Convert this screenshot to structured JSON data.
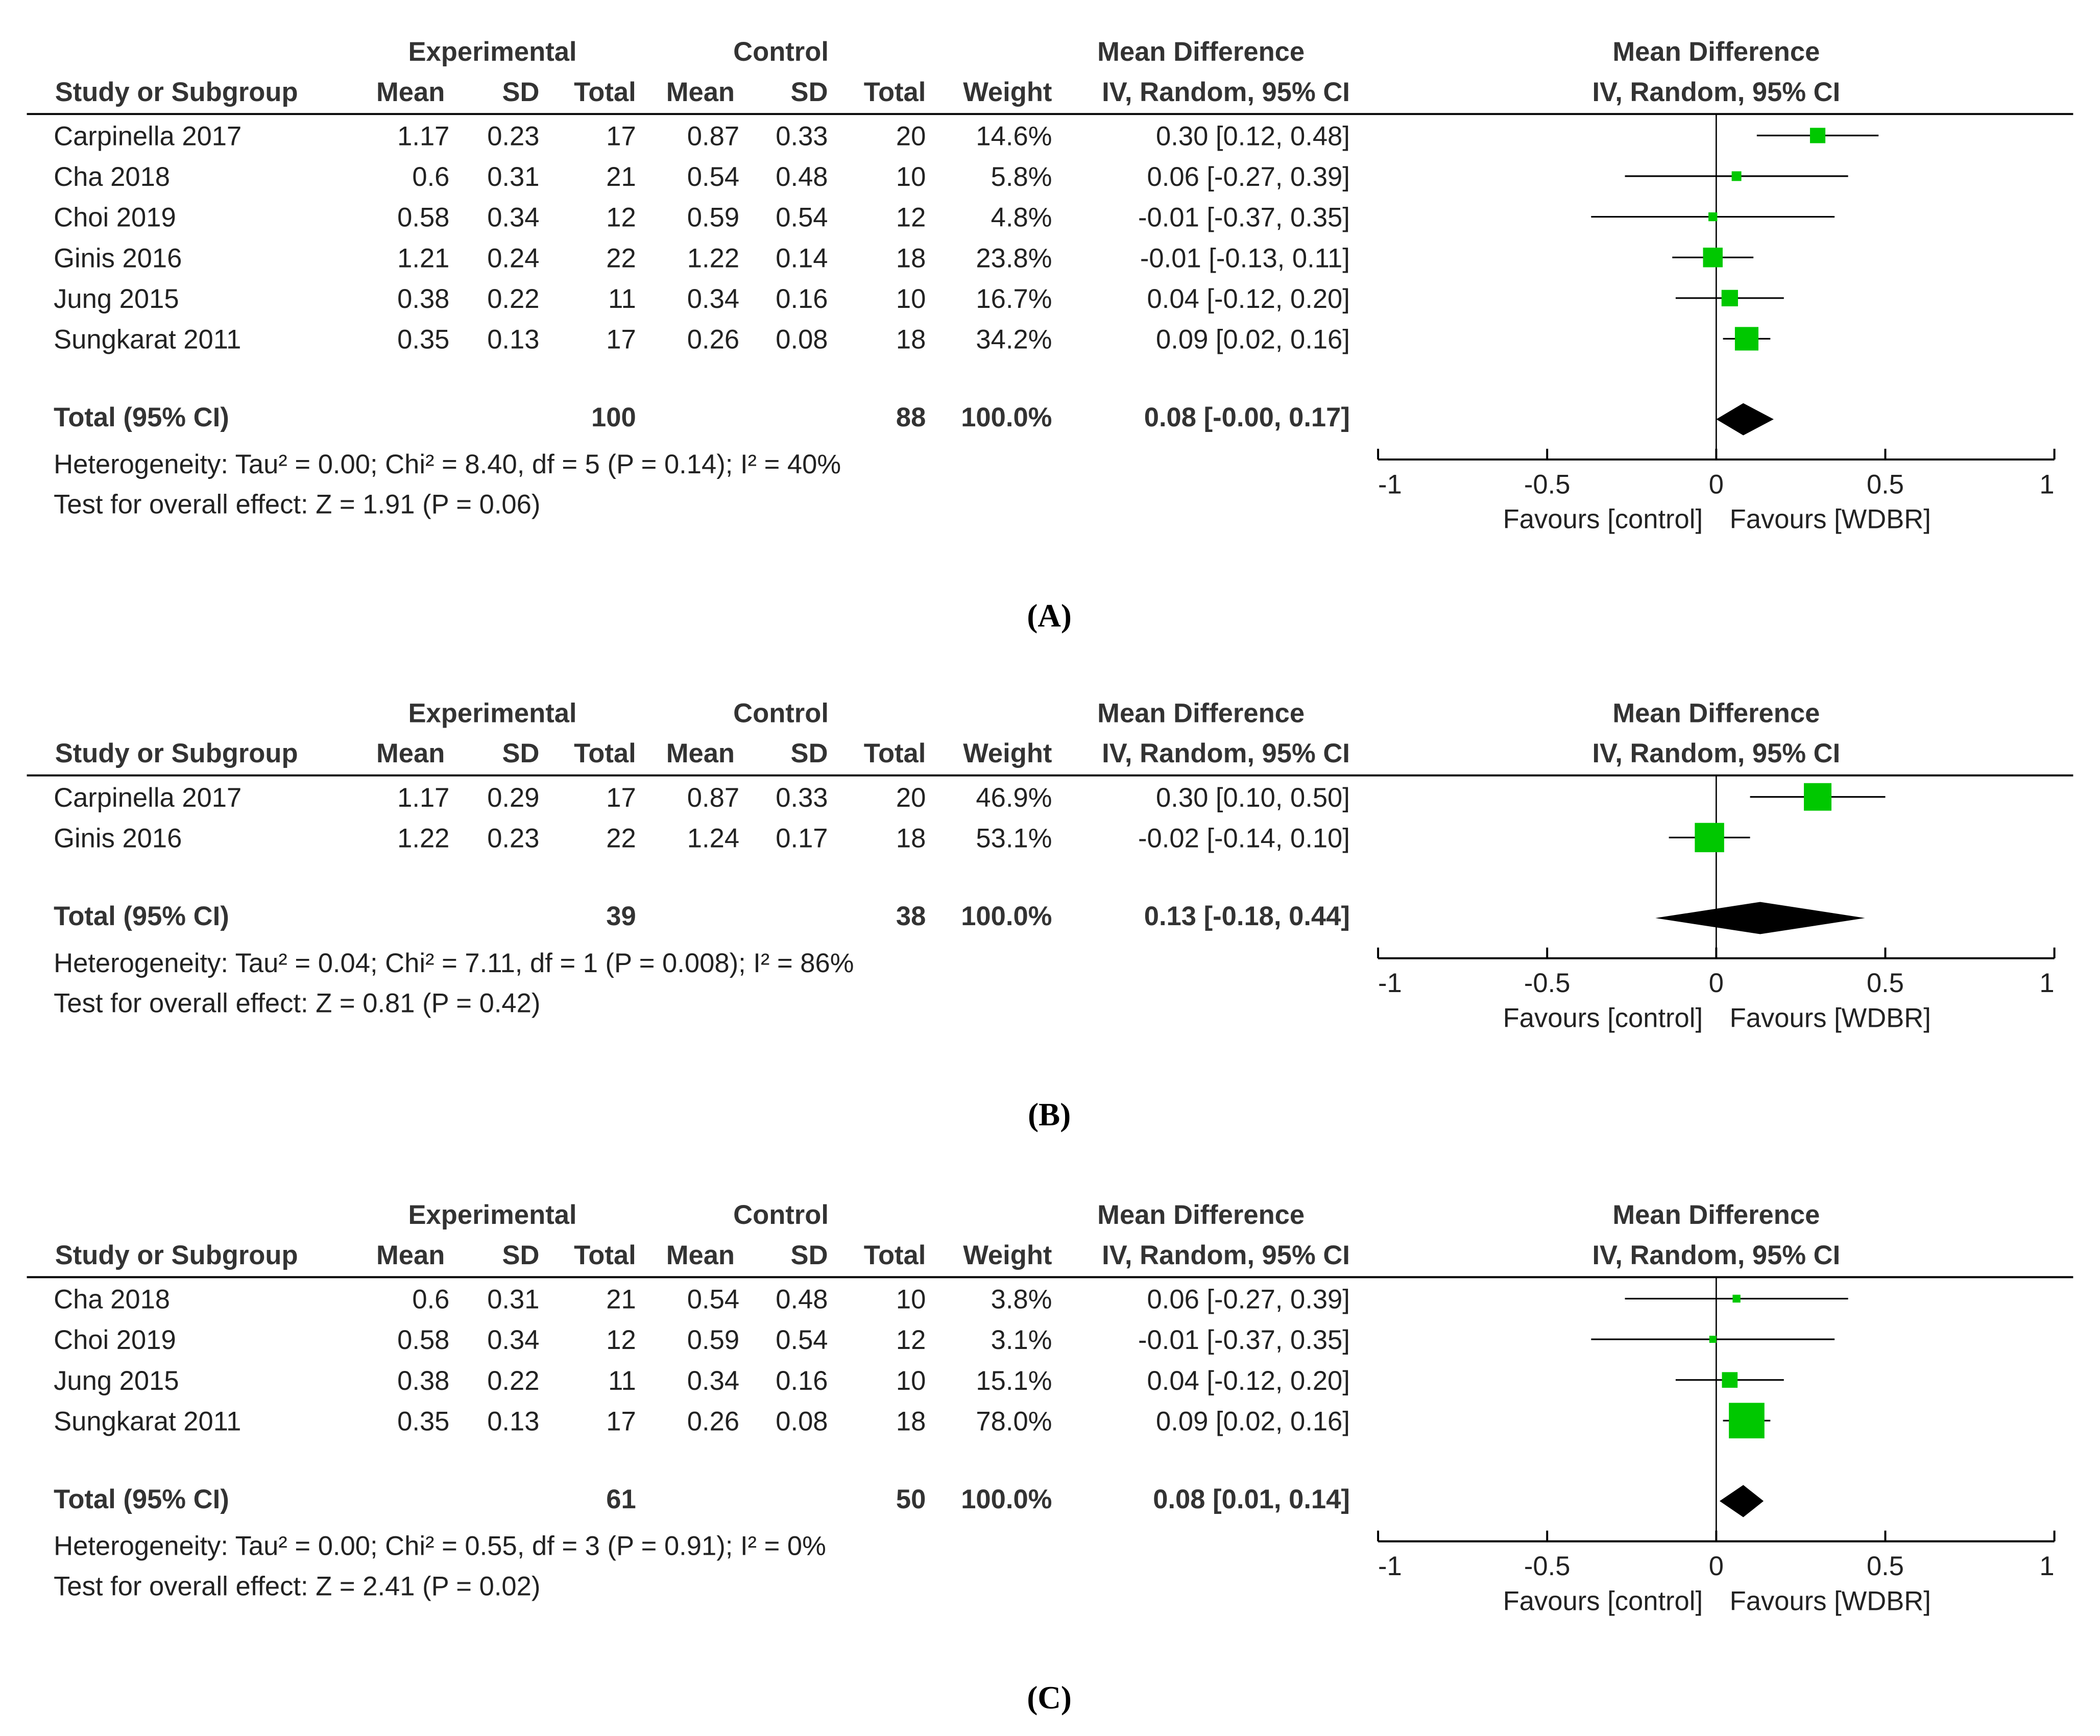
{
  "chart_data": [
    {
      "type": "forest",
      "panel_label": "(A)",
      "header": {
        "group_exp": "Experimental",
        "group_ctl": "Control",
        "group_md": "Mean Difference",
        "study": "Study or Subgroup",
        "exp_cols": [
          "Mean",
          "SD",
          "Total"
        ],
        "ctl_cols": [
          "Mean",
          "SD",
          "Total"
        ],
        "weight": "Weight",
        "md_method": "IV, Random, 95% CI",
        "plot_title": "Mean Difference",
        "plot_method": "IV, Random, 95% CI"
      },
      "studies": [
        {
          "name": "Carpinella 2017",
          "exp_mean": 1.17,
          "exp_sd": 0.23,
          "exp_total": 17,
          "ctl_mean": 0.87,
          "ctl_sd": 0.33,
          "ctl_total": 20,
          "weight": 14.6,
          "weight_label": "14.6%",
          "md": 0.3,
          "ci_low": 0.12,
          "ci_high": 0.48,
          "ci_label": "0.30 [0.12, 0.48]"
        },
        {
          "name": "Cha 2018",
          "exp_mean": 0.6,
          "exp_sd": 0.31,
          "exp_total": 21,
          "ctl_mean": 0.54,
          "ctl_sd": 0.48,
          "ctl_total": 10,
          "weight": 5.8,
          "weight_label": "5.8%",
          "md": 0.06,
          "ci_low": -0.27,
          "ci_high": 0.39,
          "ci_label": "0.06 [-0.27, 0.39]"
        },
        {
          "name": "Choi 2019",
          "exp_mean": 0.58,
          "exp_sd": 0.34,
          "exp_total": 12,
          "ctl_mean": 0.59,
          "ctl_sd": 0.54,
          "ctl_total": 12,
          "weight": 4.8,
          "weight_label": "4.8%",
          "md": -0.01,
          "ci_low": -0.37,
          "ci_high": 0.35,
          "ci_label": "-0.01 [-0.37, 0.35]"
        },
        {
          "name": "Ginis 2016",
          "exp_mean": 1.21,
          "exp_sd": 0.24,
          "exp_total": 22,
          "ctl_mean": 1.22,
          "ctl_sd": 0.14,
          "ctl_total": 18,
          "weight": 23.8,
          "weight_label": "23.8%",
          "md": -0.01,
          "ci_low": -0.13,
          "ci_high": 0.11,
          "ci_label": "-0.01 [-0.13, 0.11]"
        },
        {
          "name": "Jung 2015",
          "exp_mean": 0.38,
          "exp_sd": 0.22,
          "exp_total": 11,
          "ctl_mean": 0.34,
          "ctl_sd": 0.16,
          "ctl_total": 10,
          "weight": 16.7,
          "weight_label": "16.7%",
          "md": 0.04,
          "ci_low": -0.12,
          "ci_high": 0.2,
          "ci_label": "0.04 [-0.12, 0.20]"
        },
        {
          "name": "Sungkarat 2011",
          "exp_mean": 0.35,
          "exp_sd": 0.13,
          "exp_total": 17,
          "ctl_mean": 0.26,
          "ctl_sd": 0.08,
          "ctl_total": 18,
          "weight": 34.2,
          "weight_label": "34.2%",
          "md": 0.09,
          "ci_low": 0.02,
          "ci_high": 0.16,
          "ci_label": "0.09 [0.02, 0.16]"
        }
      ],
      "total": {
        "name": "Total (95% CI)",
        "exp_total": 100,
        "ctl_total": 88,
        "weight_label": "100.0%",
        "md": 0.08,
        "ci_low": 0,
        "ci_high": 0.17,
        "ci_label": "0.08 [-0.00, 0.17]"
      },
      "heterogeneity": "Heterogeneity: Tau² = 0.00; Chi² = 8.40, df = 5 (P = 0.14); I² = 40%",
      "overall_effect": "Test for overall effect: Z = 1.91 (P = 0.06)",
      "xlim": [
        -1,
        1
      ],
      "xticks": [
        -1,
        -0.5,
        0,
        0.5,
        1
      ],
      "favours_left": "Favours [control]",
      "favours_right": "Favours [WDBR]",
      "marker_color": "#00c800"
    },
    {
      "type": "forest",
      "panel_label": "(B)",
      "header": {
        "group_exp": "Experimental",
        "group_ctl": "Control",
        "group_md": "Mean Difference",
        "study": "Study or Subgroup",
        "exp_cols": [
          "Mean",
          "SD",
          "Total"
        ],
        "ctl_cols": [
          "Mean",
          "SD",
          "Total"
        ],
        "weight": "Weight",
        "md_method": "IV, Random, 95% CI",
        "plot_title": "Mean Difference",
        "plot_method": "IV, Random, 95% CI"
      },
      "studies": [
        {
          "name": "Carpinella 2017",
          "exp_mean": 1.17,
          "exp_sd": 0.29,
          "exp_total": 17,
          "ctl_mean": 0.87,
          "ctl_sd": 0.33,
          "ctl_total": 20,
          "weight": 46.9,
          "weight_label": "46.9%",
          "md": 0.3,
          "ci_low": 0.1,
          "ci_high": 0.5,
          "ci_label": "0.30 [0.10, 0.50]"
        },
        {
          "name": "Ginis 2016",
          "exp_mean": 1.22,
          "exp_sd": 0.23,
          "exp_total": 22,
          "ctl_mean": 1.24,
          "ctl_sd": 0.17,
          "ctl_total": 18,
          "weight": 53.1,
          "weight_label": "53.1%",
          "md": -0.02,
          "ci_low": -0.14,
          "ci_high": 0.1,
          "ci_label": "-0.02 [-0.14, 0.10]"
        }
      ],
      "total": {
        "name": "Total (95% CI)",
        "exp_total": 39,
        "ctl_total": 38,
        "weight_label": "100.0%",
        "md": 0.13,
        "ci_low": -0.18,
        "ci_high": 0.44,
        "ci_label": "0.13 [-0.18, 0.44]"
      },
      "heterogeneity": "Heterogeneity: Tau² = 0.04; Chi² = 7.11, df = 1 (P = 0.008); I² = 86%",
      "overall_effect": "Test for overall effect: Z = 0.81 (P = 0.42)",
      "xlim": [
        -1,
        1
      ],
      "xticks": [
        -1,
        -0.5,
        0,
        0.5,
        1
      ],
      "favours_left": "Favours [control]",
      "favours_right": "Favours [WDBR]",
      "marker_color": "#00c800"
    },
    {
      "type": "forest",
      "panel_label": "(C)",
      "header": {
        "group_exp": "Experimental",
        "group_ctl": "Control",
        "group_md": "Mean Difference",
        "study": "Study or Subgroup",
        "exp_cols": [
          "Mean",
          "SD",
          "Total"
        ],
        "ctl_cols": [
          "Mean",
          "SD",
          "Total"
        ],
        "weight": "Weight",
        "md_method": "IV, Random, 95% CI",
        "plot_title": "Mean Difference",
        "plot_method": "IV, Random, 95% CI"
      },
      "studies": [
        {
          "name": "Cha 2018",
          "exp_mean": 0.6,
          "exp_sd": 0.31,
          "exp_total": 21,
          "ctl_mean": 0.54,
          "ctl_sd": 0.48,
          "ctl_total": 10,
          "weight": 3.8,
          "weight_label": "3.8%",
          "md": 0.06,
          "ci_low": -0.27,
          "ci_high": 0.39,
          "ci_label": "0.06 [-0.27, 0.39]"
        },
        {
          "name": "Choi 2019",
          "exp_mean": 0.58,
          "exp_sd": 0.34,
          "exp_total": 12,
          "ctl_mean": 0.59,
          "ctl_sd": 0.54,
          "ctl_total": 12,
          "weight": 3.1,
          "weight_label": "3.1%",
          "md": -0.01,
          "ci_low": -0.37,
          "ci_high": 0.35,
          "ci_label": "-0.01 [-0.37, 0.35]"
        },
        {
          "name": "Jung 2015",
          "exp_mean": 0.38,
          "exp_sd": 0.22,
          "exp_total": 11,
          "ctl_mean": 0.34,
          "ctl_sd": 0.16,
          "ctl_total": 10,
          "weight": 15.1,
          "weight_label": "15.1%",
          "md": 0.04,
          "ci_low": -0.12,
          "ci_high": 0.2,
          "ci_label": "0.04 [-0.12, 0.20]"
        },
        {
          "name": "Sungkarat 2011",
          "exp_mean": 0.35,
          "exp_sd": 0.13,
          "exp_total": 17,
          "ctl_mean": 0.26,
          "ctl_sd": 0.08,
          "ctl_total": 18,
          "weight": 78.0,
          "weight_label": "78.0%",
          "md": 0.09,
          "ci_low": 0.02,
          "ci_high": 0.16,
          "ci_label": "0.09 [0.02, 0.16]"
        }
      ],
      "total": {
        "name": "Total (95% CI)",
        "exp_total": 61,
        "ctl_total": 50,
        "weight_label": "100.0%",
        "md": 0.08,
        "ci_low": 0.01,
        "ci_high": 0.14,
        "ci_label": "0.08 [0.01, 0.14]"
      },
      "heterogeneity": "Heterogeneity: Tau² = 0.00; Chi² = 0.55, df = 3 (P = 0.91); I² = 0%",
      "overall_effect": "Test for overall effect: Z = 2.41 (P = 0.02)",
      "xlim": [
        -1,
        1
      ],
      "xticks": [
        -1,
        -0.5,
        0,
        0.5,
        1
      ],
      "favours_left": "Favours [control]",
      "favours_right": "Favours [WDBR]",
      "marker_color": "#00c800"
    }
  ]
}
